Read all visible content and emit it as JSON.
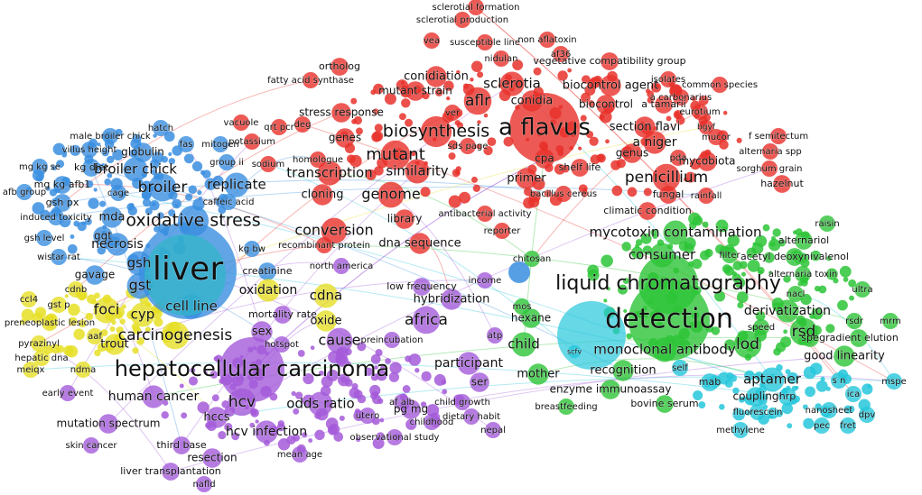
{
  "labels": [
    "sclerotial formation",
    "sclerotial production",
    "non aflatoxin",
    "vea",
    "susceptible line",
    "af36",
    "nidulan",
    "vegetative compatibility group",
    "ortholog",
    "conidiation",
    "sclerotia",
    "biocontrol agent",
    "isolates",
    "common species",
    "fatty acid synthase",
    "mutant strain",
    "a carbonarius",
    "aflr",
    "conidia",
    "biocontrol",
    "a tamarii",
    "eurotium",
    "ver",
    "stress response",
    "vacuole",
    "qrt pcr",
    "deg",
    "potassium",
    "a flavus",
    "biosynthesis",
    "section flavi",
    "bgyf",
    "mucor",
    "f semitectum",
    "genes",
    "alternaria spp",
    "homologue",
    "mutant",
    "a niger",
    "genus",
    "pda",
    "mycobiota",
    "sodium",
    "sds page",
    "cpa",
    "sorghum grain",
    "transcription",
    "similarity",
    "shelf life",
    "primer",
    "penicillium",
    "hazelnut",
    "genome",
    "cloning",
    "bacillus cereus",
    "fungal",
    "rainfall",
    "library",
    "antibacterial activity",
    "climatic condition",
    "conversion",
    "reporter",
    "dna sequence",
    "recombinant protein",
    "hatch",
    "male broiler chick",
    "fas",
    "villus height",
    "globulin",
    "mitogen",
    "mg kg se",
    "kg diet",
    "broiler chick",
    "group ii",
    "mg kg afb1",
    "cage",
    "afb group",
    "gsh px",
    "broiler",
    "replicate",
    "caffeic acid",
    "induced toxicity",
    "mda",
    "oxidative stress",
    "gsh level",
    "ggt",
    "necrosis",
    "wistar rat",
    "kg bw",
    "liver",
    "gsh",
    "gst",
    "gavage",
    "cell line",
    "creatinine",
    "ccl4",
    "gst p",
    "cdnb",
    "foci",
    "cyp",
    "preneoplastic lesion",
    "pyrazinyl",
    "aaf",
    "trout",
    "hepatic dna",
    "carcinogenesis",
    "meiqx",
    "ndma",
    "oxidation",
    "cdna",
    "oxide",
    "mortality rate",
    "sex",
    "hotspot",
    "cause",
    "preincubation",
    "africa",
    "hepatocellular carcinoma",
    "participant",
    "ser",
    "early event",
    "human cancer",
    "hcv",
    "odds ratio",
    "af alb",
    "child growth",
    "pg mg",
    "utero",
    "childhood",
    "dietary habit",
    "nepal",
    "hccs",
    "hcv infection",
    "mutation spectrum",
    "observational study",
    "third base",
    "mean age",
    "skin cancer",
    "resection",
    "liver transplantation",
    "nafld",
    "north america",
    "low frequency",
    "hybridization",
    "income",
    "atp",
    "mycotoxin contamination",
    "consumer",
    "filter",
    "raisin",
    "alternariol",
    "acetyl deoxynivalenol",
    "alternaria toxin",
    "ultra",
    "nacl",
    "liquid chromatography",
    "chitosan",
    "derivatization",
    "detection",
    "rsdr",
    "mrm",
    "speed",
    "lod",
    "rsd",
    "spe",
    "gradient elution",
    "monoclonal antibody",
    "good linearity",
    "child",
    "mother",
    "recognition",
    "self",
    "mab",
    "aptamer",
    "s n",
    "ica",
    "mspe",
    "enzyme immunoassay",
    "coupling",
    "hrp",
    "nanosheet",
    "dpv",
    "fluorescein",
    "pec",
    "fret",
    "methylene",
    "bovine serum",
    "breastfeeding",
    "hexane",
    "mos",
    "scfv"
  ]
}
